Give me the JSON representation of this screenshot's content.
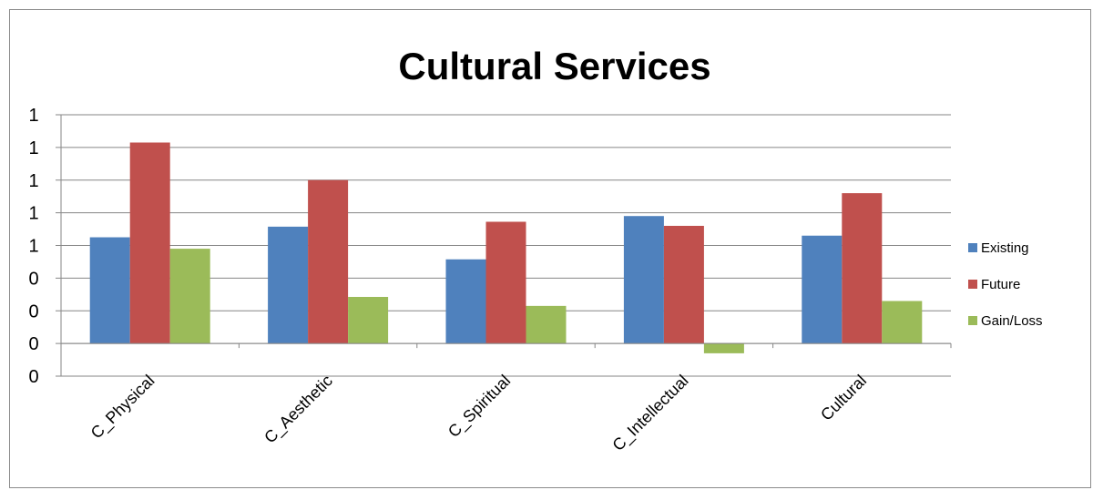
{
  "chart_data": {
    "type": "bar",
    "title": "Cultural Services",
    "xlabel": "",
    "ylabel": "",
    "categories": [
      "C_Physical",
      "C_Aesthetic",
      "C_Spiritual",
      "C_Intellectual",
      "Cultural"
    ],
    "series": [
      {
        "name": "Existing",
        "color": "#4F81BD",
        "values": [
          0.65,
          0.715,
          0.515,
          0.78,
          0.66
        ]
      },
      {
        "name": "Future",
        "color": "#C0504D",
        "values": [
          1.23,
          1.0,
          0.745,
          0.72,
          0.92
        ]
      },
      {
        "name": "Gain/Loss",
        "color": "#9BBB59",
        "values": [
          0.58,
          0.285,
          0.23,
          -0.06,
          0.26
        ]
      }
    ],
    "ylim": [
      -0.2,
      1.4
    ],
    "yticks": [
      -0.2,
      0,
      0.2,
      0.4,
      0.6,
      0.8,
      1.0,
      1.2,
      1.4
    ],
    "ytick_labels": [
      "0",
      "0",
      "0",
      "0",
      "1",
      "1",
      "1",
      "1",
      "1"
    ],
    "grid": true,
    "legend": "right"
  }
}
